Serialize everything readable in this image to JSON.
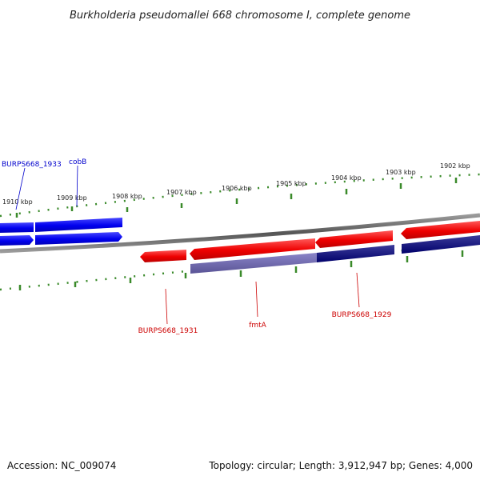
{
  "title": "Burkholderia pseudomallei 668 chromosome I, complete genome",
  "footer": {
    "accession": "Accession: NC_009074",
    "summary": "Topology: circular; Length: 3,912,947 bp; Genes: 4,000"
  },
  "scale_labels": [
    "1910 kbp",
    "1909 kbp",
    "1908 kbp",
    "1907 kbp",
    "1906 kbp",
    "1905 kbp",
    "1904 kbp",
    "1903 kbp",
    "1902 kbp"
  ],
  "gene_labels": {
    "burps668_1933": "BURPS668_1933",
    "cobb": "cobB",
    "burps668_1931": "BURPS668_1931",
    "fmta": "fmtA",
    "burps668_1929": "BURPS668_1929"
  },
  "colors": {
    "forward_gene": "#0000ee",
    "forward_cds": "#0000ee",
    "reverse_gene": "#ee0000",
    "reverse_cds": "#000080",
    "backbone": "#777777",
    "tick": "#3a8a2a",
    "forward_label": "#0000cc",
    "reverse_label": "#cc0000"
  },
  "icons": [
    "forward-gene-arrow",
    "reverse-gene-arrow"
  ]
}
